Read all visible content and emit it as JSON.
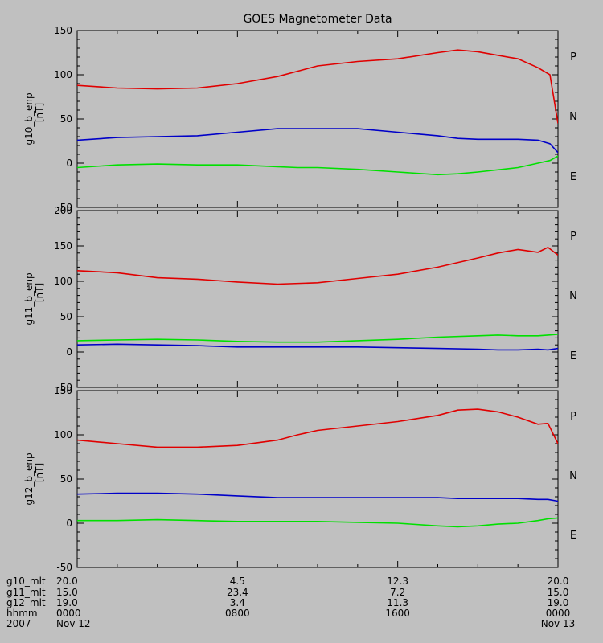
{
  "title": "GOES Magnetometer Data",
  "colors": {
    "P": "#e00000",
    "N": "#00e000",
    "E": "#0000c8",
    "background": "#c0c0c0"
  },
  "chart_data": [
    {
      "type": "line",
      "ylabel": "g10_b_enp",
      "yunits": "[nT]",
      "ylim": [
        -50,
        150
      ],
      "yticks": [
        150,
        100,
        50,
        0,
        -50
      ],
      "x_hours": [
        0,
        2,
        4,
        6,
        8,
        10,
        11,
        12,
        14,
        16,
        18,
        19,
        20,
        22,
        23,
        23.6,
        24
      ],
      "series": [
        {
          "name": "P",
          "values": [
            88,
            85,
            84,
            85,
            90,
            98,
            104,
            110,
            115,
            118,
            125,
            128,
            126,
            118,
            108,
            100,
            45
          ]
        },
        {
          "name": "N",
          "values": [
            -5,
            -2,
            -1,
            -2,
            -2,
            -4,
            -5,
            -5,
            -7,
            -10,
            -13,
            -12,
            -10,
            -5,
            0,
            3,
            8
          ]
        },
        {
          "name": "E",
          "values": [
            26,
            29,
            30,
            31,
            35,
            39,
            39,
            39,
            39,
            35,
            31,
            28,
            27,
            27,
            26,
            22,
            12
          ]
        }
      ],
      "legend": [
        "P",
        "N",
        "E"
      ]
    },
    {
      "type": "line",
      "ylabel": "g11_b_enp",
      "yunits": "[nT]",
      "ylim": [
        -50,
        200
      ],
      "yticks": [
        200,
        150,
        100,
        50,
        0,
        -50
      ],
      "x_hours": [
        0,
        2,
        4,
        6,
        8,
        10,
        12,
        14,
        16,
        18,
        20,
        21,
        22,
        23,
        23.5,
        24
      ],
      "series": [
        {
          "name": "P",
          "values": [
            115,
            112,
            105,
            103,
            99,
            96,
            98,
            104,
            110,
            120,
            133,
            140,
            145,
            141,
            148,
            137
          ]
        },
        {
          "name": "N",
          "values": [
            16,
            17,
            18,
            17,
            15,
            14,
            14,
            16,
            18,
            21,
            23,
            24,
            23,
            23,
            24,
            25
          ]
        },
        {
          "name": "E",
          "values": [
            10,
            11,
            10,
            9,
            7,
            7,
            7,
            7,
            6,
            5,
            4,
            3,
            3,
            4,
            3,
            5
          ]
        }
      ],
      "legend": [
        "P",
        "N",
        "E"
      ]
    },
    {
      "type": "line",
      "ylabel": "g12_b_enp",
      "yunits": "[nT]",
      "ylim": [
        -50,
        150
      ],
      "yticks": [
        150,
        100,
        50,
        0,
        -50
      ],
      "x_hours": [
        0,
        2,
        4,
        6,
        8,
        10,
        11,
        12,
        14,
        16,
        18,
        19,
        20,
        21,
        22,
        23,
        23.5,
        24
      ],
      "series": [
        {
          "name": "P",
          "values": [
            94,
            90,
            86,
            86,
            88,
            94,
            100,
            105,
            110,
            115,
            122,
            128,
            129,
            126,
            120,
            112,
            113,
            90
          ]
        },
        {
          "name": "N",
          "values": [
            3,
            3,
            4,
            3,
            2,
            2,
            2,
            2,
            1,
            0,
            -3,
            -4,
            -3,
            -1,
            0,
            3,
            5,
            6
          ]
        },
        {
          "name": "E",
          "values": [
            33,
            34,
            34,
            33,
            31,
            29,
            29,
            29,
            29,
            29,
            29,
            28,
            28,
            28,
            28,
            27,
            27,
            25
          ]
        }
      ],
      "legend": [
        "P",
        "N",
        "E"
      ]
    }
  ],
  "x_axis": {
    "rows": [
      {
        "label": "g10_mlt",
        "values": [
          "20.0",
          "4.5",
          "12.3",
          "20.0"
        ]
      },
      {
        "label": "g11_mlt",
        "values": [
          "15.0",
          "23.4",
          "7.2",
          "15.0"
        ]
      },
      {
        "label": "g12_mlt",
        "values": [
          "19.0",
          "3.4",
          "11.3",
          "19.0"
        ]
      },
      {
        "label": "hhmm",
        "values": [
          "0000",
          "0800",
          "1600",
          "0000"
        ]
      },
      {
        "label": "2007",
        "values": [
          "Nov 12",
          "",
          "",
          "Nov 13"
        ]
      }
    ],
    "tick_hours": [
      0,
      8,
      16,
      24
    ],
    "minor_tick_hours": [
      2,
      4,
      6,
      10,
      12,
      14,
      18,
      20,
      22
    ]
  }
}
